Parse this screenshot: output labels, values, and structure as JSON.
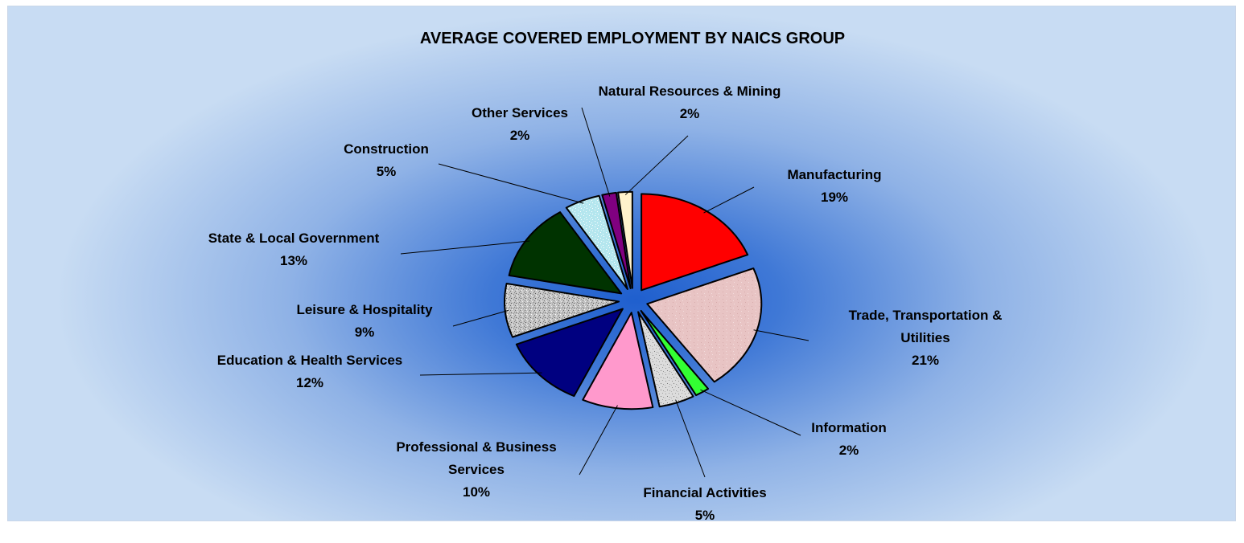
{
  "chart_data": {
    "type": "pie",
    "title": "AVERAGE COVERED EMPLOYMENT BY NAICS GROUP",
    "exploded": true,
    "slices": [
      {
        "label": "Manufacturing",
        "lines": [
          "Manufacturing"
        ],
        "value": 19,
        "pct_label": "19%",
        "color": "#ff0000",
        "pattern": "solid"
      },
      {
        "label": "Trade, Transportation & Utilities",
        "lines": [
          "Trade, Transportation &",
          "Utilities"
        ],
        "value": 21,
        "pct_label": "21%",
        "color": "#e8c4c4",
        "pattern": "speckle-light"
      },
      {
        "label": "Information",
        "lines": [
          "Information"
        ],
        "value": 2,
        "pct_label": "2%",
        "color": "#33ff33",
        "pattern": "solid"
      },
      {
        "label": "Financial Activities",
        "lines": [
          "Financial Activities"
        ],
        "value": 5,
        "pct_label": "5%",
        "color": "#d9d9d9",
        "pattern": "speckle"
      },
      {
        "label": "Professional & Business Services",
        "lines": [
          "Professional & Business",
          "Services"
        ],
        "value": 10,
        "pct_label": "10%",
        "color": "#ff99cc",
        "pattern": "solid"
      },
      {
        "label": "Education & Health Services",
        "lines": [
          "Education & Health Services"
        ],
        "value": 12,
        "pct_label": "12%",
        "color": "#000080",
        "pattern": "solid"
      },
      {
        "label": "Leisure & Hospitality",
        "lines": [
          "Leisure & Hospitality"
        ],
        "value": 9,
        "pct_label": "9%",
        "color": "#bfbfbf",
        "pattern": "granite"
      },
      {
        "label": "State & Local Government",
        "lines": [
          "State & Local Government"
        ],
        "value": 13,
        "pct_label": "13%",
        "color": "#003300",
        "pattern": "solid"
      },
      {
        "label": "Construction",
        "lines": [
          "Construction"
        ],
        "value": 5,
        "pct_label": "5%",
        "color": "#b4e6ee",
        "pattern": "speckle-light"
      },
      {
        "label": "Other Services",
        "lines": [
          "Other Services"
        ],
        "value": 2,
        "pct_label": "2%",
        "color": "#800080",
        "pattern": "solid"
      },
      {
        "label": "Natural Resources & Mining",
        "lines": [
          "Natural Resources & Mining"
        ],
        "value": 2,
        "pct_label": "2%",
        "color": "#fff2cc",
        "pattern": "solid"
      }
    ],
    "legend": "none",
    "background_colors": [
      "#1f5fce",
      "#c8dcf3"
    ]
  }
}
